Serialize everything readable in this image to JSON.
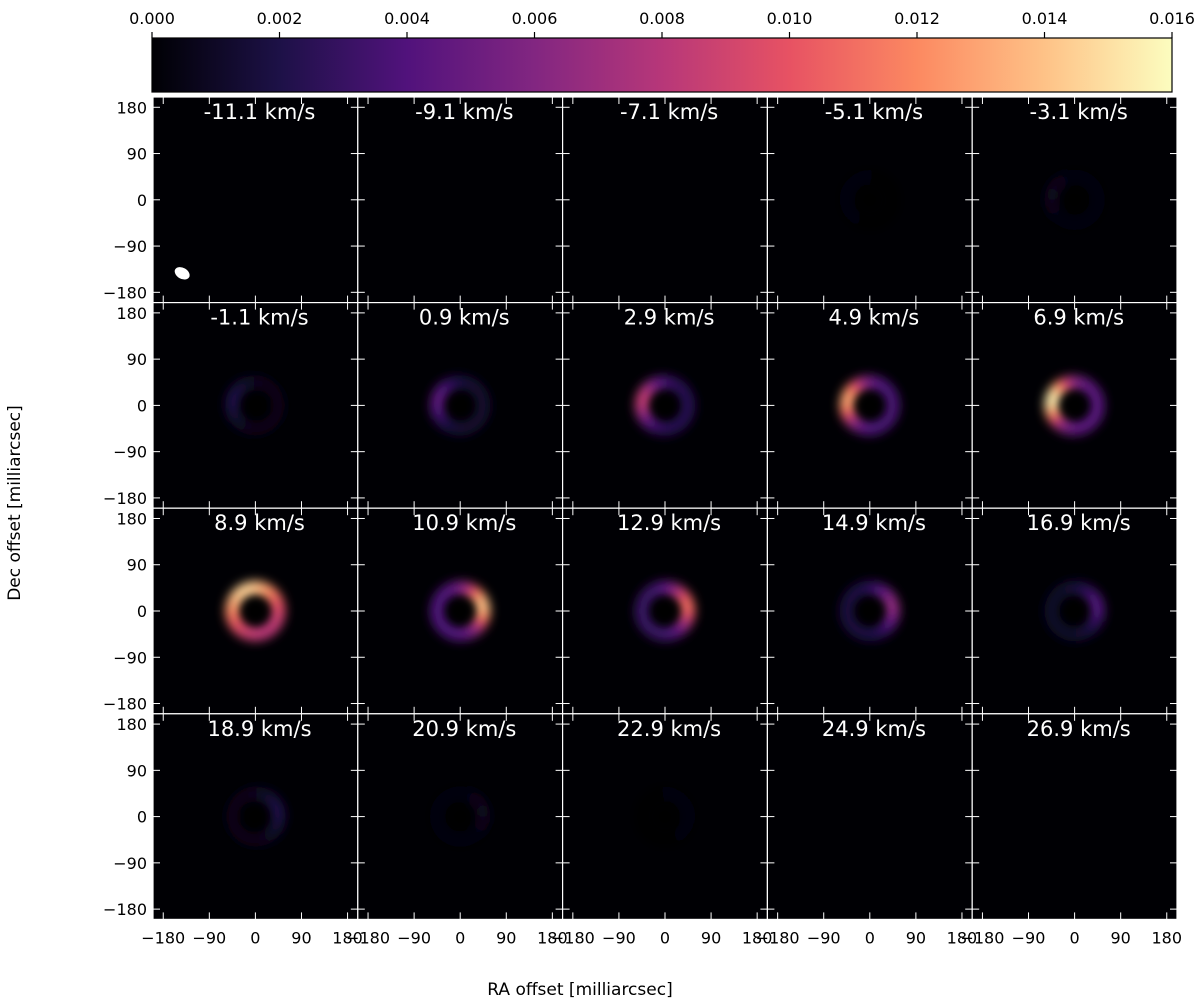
{
  "colorbar": {
    "ticks": [
      "0.000",
      "0.002",
      "0.004",
      "0.006",
      "0.008",
      "0.010",
      "0.012",
      "0.014",
      "0.016"
    ],
    "min": 0.0,
    "max": 0.016,
    "colormap": "magma",
    "stops": [
      "#000004",
      "#1d1147",
      "#51127c",
      "#822681",
      "#b73779",
      "#e75263",
      "#fc8961",
      "#fec287",
      "#fcfdbf"
    ]
  },
  "axes": {
    "xlabel": "RA offset [milliarcsec]",
    "ylabel": "Dec offset [milliarcsec]",
    "x_ticks": [
      "−180",
      "−90",
      "0",
      "90",
      "180"
    ],
    "y_ticks": [
      "180",
      "90",
      "0",
      "−90",
      "−180"
    ],
    "x_tick_values": [
      -180,
      -90,
      0,
      90,
      180
    ],
    "y_tick_values": [
      180,
      90,
      0,
      -90,
      -180
    ],
    "xlim": [
      -200,
      200
    ],
    "ylim": [
      -200,
      200
    ]
  },
  "chart_data": {
    "type": "heatmap",
    "units": "colorbar 0.000 - 0.016",
    "beam": {
      "x": -143,
      "y": -143,
      "present_in_panel": 0
    },
    "panels": [
      {
        "label": "-11.1 km/s",
        "velocity": -11.1,
        "peak": 0.0,
        "bright_side": "none"
      },
      {
        "label": "-9.1 km/s",
        "velocity": -9.1,
        "peak": 0.0,
        "bright_side": "none"
      },
      {
        "label": "-7.1 km/s",
        "velocity": -7.1,
        "peak": 0.0,
        "bright_side": "none"
      },
      {
        "label": "-5.1 km/s",
        "velocity": -5.1,
        "peak": 0.0002,
        "bright_side": "east"
      },
      {
        "label": "-3.1 km/s",
        "velocity": -3.1,
        "peak": 0.0008,
        "bright_side": "east"
      },
      {
        "label": "-1.1 km/s",
        "velocity": -1.1,
        "peak": 0.002,
        "bright_side": "east"
      },
      {
        "label": "0.9 km/s",
        "velocity": 0.9,
        "peak": 0.0045,
        "bright_side": "east"
      },
      {
        "label": "2.9 km/s",
        "velocity": 2.9,
        "peak": 0.0085,
        "bright_side": "east"
      },
      {
        "label": "4.9 km/s",
        "velocity": 4.9,
        "peak": 0.013,
        "bright_side": "east"
      },
      {
        "label": "6.9 km/s",
        "velocity": 6.9,
        "peak": 0.0155,
        "bright_side": "east"
      },
      {
        "label": "8.9 km/s",
        "velocity": 8.9,
        "peak": 0.0145,
        "bright_side": "center"
      },
      {
        "label": "10.9 km/s",
        "velocity": 10.9,
        "peak": 0.014,
        "bright_side": "west"
      },
      {
        "label": "12.9 km/s",
        "velocity": 12.9,
        "peak": 0.011,
        "bright_side": "west"
      },
      {
        "label": "14.9 km/s",
        "velocity": 14.9,
        "peak": 0.0065,
        "bright_side": "west"
      },
      {
        "label": "16.9 km/s",
        "velocity": 16.9,
        "peak": 0.004,
        "bright_side": "west"
      },
      {
        "label": "18.9 km/s",
        "velocity": 18.9,
        "peak": 0.002,
        "bright_side": "west"
      },
      {
        "label": "20.9 km/s",
        "velocity": 20.9,
        "peak": 0.0008,
        "bright_side": "west"
      },
      {
        "label": "22.9 km/s",
        "velocity": 22.9,
        "peak": 0.0002,
        "bright_side": "west"
      },
      {
        "label": "24.9 km/s",
        "velocity": 24.9,
        "peak": 0.0,
        "bright_side": "none"
      },
      {
        "label": "26.9 km/s",
        "velocity": 26.9,
        "peak": 0.0,
        "bright_side": "none"
      }
    ]
  }
}
